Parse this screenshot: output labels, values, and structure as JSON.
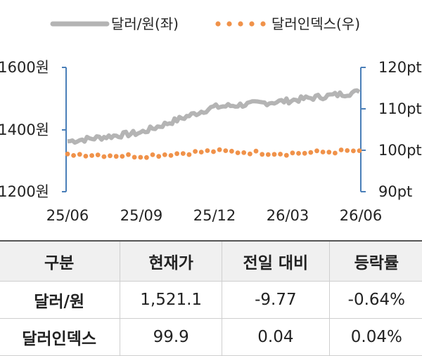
{
  "legend": {
    "series1_label": "달러/원(좌)",
    "series2_label": "달러인덱스(우)"
  },
  "chart_data": {
    "type": "line",
    "x_ticks": [
      "25/06",
      "25/09",
      "25/12",
      "26/03",
      "26/06"
    ],
    "y_left": {
      "ticks": [
        "1600원",
        "1400원",
        "1200원"
      ],
      "ylim": [
        1200,
        1600
      ]
    },
    "y_right": {
      "ticks": [
        "120pt",
        "110pt",
        "100pt",
        "90pt"
      ],
      "ylim": [
        90,
        120
      ]
    },
    "colors": {
      "usdkrw": "#b4b4b4",
      "dxy": "#f0924a",
      "axis": "#4a7fb8"
    },
    "series": [
      {
        "name": "달러/원(좌)",
        "axis": "left",
        "x": [
          "25/06",
          "25/09",
          "25/12",
          "26/03",
          "26/06"
        ],
        "values": [
          1362,
          1390,
          1472,
          1492,
          1521
        ]
      },
      {
        "name": "달러인덱스(우)",
        "axis": "right",
        "x": [
          "25/06",
          "25/09",
          "25/12",
          "26/03",
          "26/06"
        ],
        "values": [
          99.1,
          98.6,
          99.8,
          99.2,
          99.9
        ]
      }
    ]
  },
  "table": {
    "headers": [
      "구분",
      "현재가",
      "전일 대비",
      "등락률"
    ],
    "rows": [
      [
        "달러/원",
        "1,521.1",
        "-9.77",
        "-0.64%"
      ],
      [
        "달러인덱스",
        "99.9",
        "0.04",
        "0.04%"
      ]
    ]
  }
}
